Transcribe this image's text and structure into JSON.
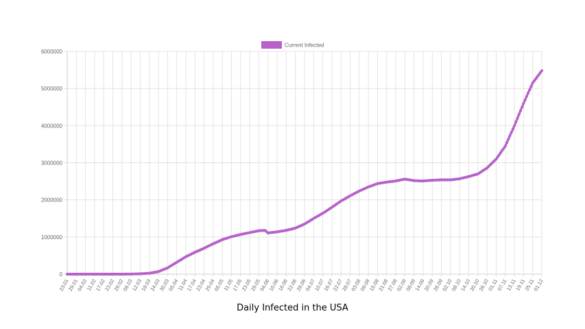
{
  "caption": "Daily Infected in the USA",
  "colors": {
    "series": "#b662c9",
    "grid": "#e3e3e3",
    "axis_text": "#666666"
  },
  "chart_data": {
    "type": "line",
    "series": [
      {
        "name": "Current Infected",
        "color": "#b662c9"
      }
    ],
    "legend_position": "top-center",
    "grid": true,
    "ylim": [
      0,
      6000000
    ],
    "y_ticks": [
      "0",
      "1000000",
      "2000000",
      "3000000",
      "4000000",
      "5000000",
      "6000000"
    ],
    "x_tick_labels": [
      "23.01",
      "29.01",
      "04.02",
      "11.02",
      "17.02",
      "23.02",
      "29.02",
      "06.03",
      "12.03",
      "18.03",
      "24.03",
      "30.03",
      "05.04",
      "11.04",
      "17.04",
      "23.04",
      "29.04",
      "05.05",
      "11.05",
      "17.05",
      "23.05",
      "29.05",
      "04.06",
      "10.06",
      "16.06",
      "22.06",
      "28.06",
      "04.07",
      "10.07",
      "16.07",
      "22.07",
      "28.07",
      "03.08",
      "09.08",
      "15.08",
      "21.08",
      "27.08",
      "02.09",
      "08.09",
      "14.09",
      "20.09",
      "26.09",
      "02.10",
      "08.10",
      "14.10",
      "20.10",
      "26.10",
      "01.11",
      "07.11",
      "13.11",
      "19.11",
      "25.11",
      "01.12"
    ],
    "points": [
      [
        "23.01",
        0
      ],
      [
        "29.01",
        0
      ],
      [
        "04.02",
        0
      ],
      [
        "11.02",
        0
      ],
      [
        "17.02",
        0
      ],
      [
        "23.02",
        0
      ],
      [
        "29.02",
        0
      ],
      [
        "06.03",
        2000
      ],
      [
        "12.03",
        10000
      ],
      [
        "18.03",
        25000
      ],
      [
        "24.03",
        70000
      ],
      [
        "30.03",
        170000
      ],
      [
        "05.04",
        320000
      ],
      [
        "11.04",
        470000
      ],
      [
        "17.04",
        590000
      ],
      [
        "23.04",
        700000
      ],
      [
        "29.04",
        820000
      ],
      [
        "05.05",
        930000
      ],
      [
        "11.05",
        1010000
      ],
      [
        "17.05",
        1070000
      ],
      [
        "23.05",
        1120000
      ],
      [
        "29.05",
        1170000
      ],
      [
        "02.06",
        1180000
      ],
      [
        "04.06",
        1110000
      ],
      [
        "10.06",
        1140000
      ],
      [
        "16.06",
        1180000
      ],
      [
        "22.06",
        1240000
      ],
      [
        "28.06",
        1350000
      ],
      [
        "04.07",
        1500000
      ],
      [
        "10.07",
        1640000
      ],
      [
        "16.07",
        1800000
      ],
      [
        "22.07",
        1970000
      ],
      [
        "28.07",
        2110000
      ],
      [
        "03.08",
        2240000
      ],
      [
        "09.08",
        2350000
      ],
      [
        "15.08",
        2440000
      ],
      [
        "21.08",
        2480000
      ],
      [
        "27.08",
        2510000
      ],
      [
        "02.09",
        2560000
      ],
      [
        "08.09",
        2520000
      ],
      [
        "14.09",
        2510000
      ],
      [
        "20.09",
        2530000
      ],
      [
        "26.09",
        2540000
      ],
      [
        "02.10",
        2540000
      ],
      [
        "08.10",
        2570000
      ],
      [
        "14.10",
        2630000
      ],
      [
        "20.10",
        2700000
      ],
      [
        "26.10",
        2860000
      ],
      [
        "01.11",
        3100000
      ],
      [
        "07.11",
        3450000
      ],
      [
        "13.11",
        4000000
      ],
      [
        "19.11",
        4600000
      ],
      [
        "25.11",
        5150000
      ],
      [
        "01.12",
        5480000
      ]
    ]
  }
}
